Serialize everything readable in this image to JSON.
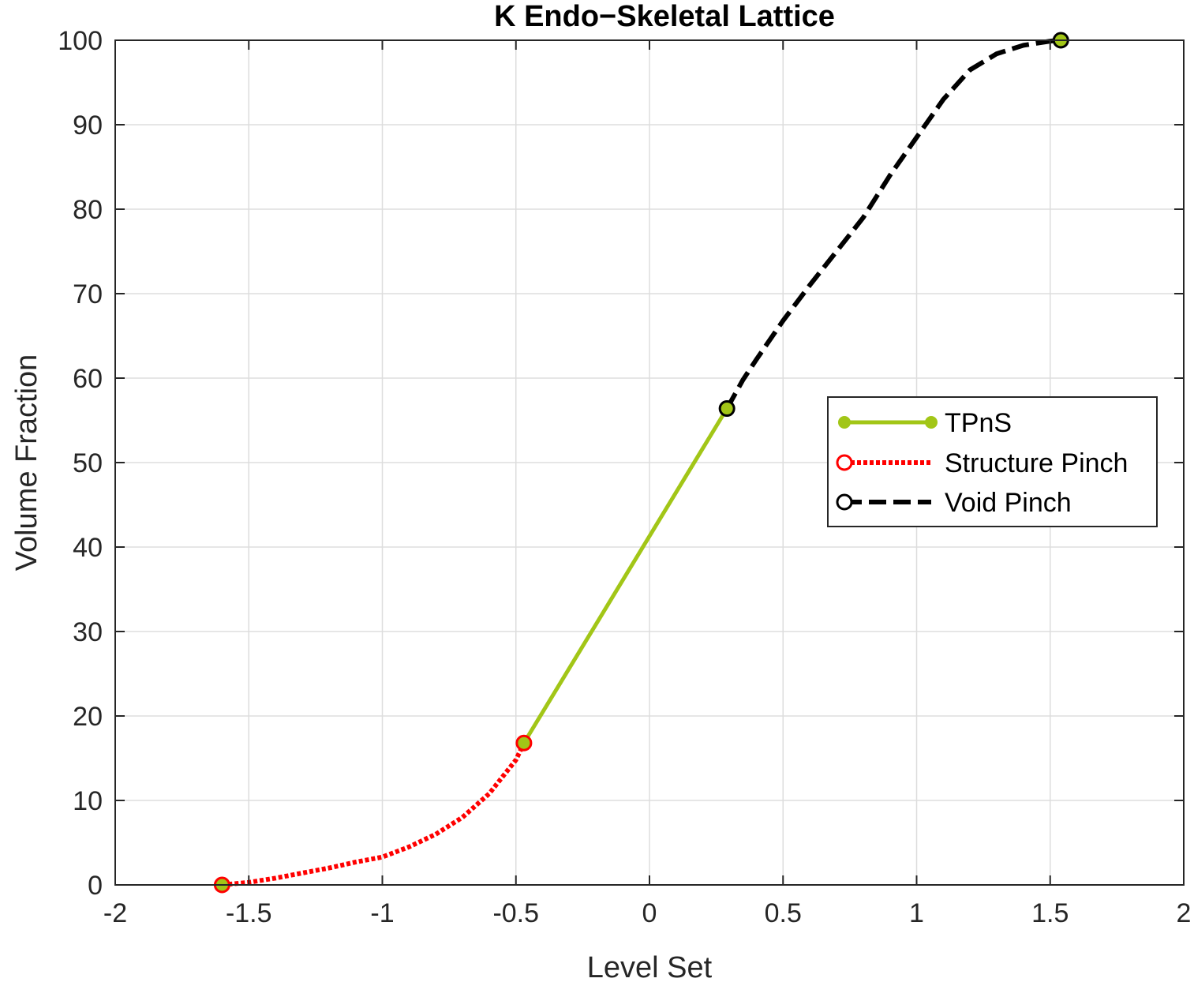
{
  "colors": {
    "tpns": "#a2c617",
    "structure": "#ff0000",
    "void": "#000000",
    "grid": "#dddddd",
    "axis": "#262626"
  },
  "chart_data": {
    "type": "line",
    "title": "K Endo−Skeletal Lattice",
    "xlabel": "Level Set",
    "ylabel": "Volume Fraction",
    "xlim": [
      -2,
      2
    ],
    "ylim": [
      0,
      100
    ],
    "xticks": [
      -2,
      -1.5,
      -1,
      -0.5,
      0,
      0.5,
      1,
      1.5,
      2
    ],
    "xtick_labels": [
      "-2",
      "-1.5",
      "-1",
      "-0.5",
      "0",
      "0.5",
      "1",
      "1.5",
      "2"
    ],
    "yticks": [
      0,
      10,
      20,
      30,
      40,
      50,
      60,
      70,
      80,
      90,
      100
    ],
    "ytick_labels": [
      "0",
      "10",
      "20",
      "30",
      "40",
      "50",
      "60",
      "70",
      "80",
      "90",
      "100"
    ],
    "grid": true,
    "legend_position": "right",
    "series": [
      {
        "name": "TPnS",
        "style": "solid",
        "marker": "filled-circle",
        "x": [
          -0.47,
          0.29
        ],
        "y": [
          16.8,
          56.4
        ]
      },
      {
        "name": "Structure Pinch",
        "style": "dotted",
        "marker": "open-circle",
        "x": [
          -1.6,
          -1.5,
          -1.4,
          -1.3,
          -1.2,
          -1.1,
          -1.0,
          -0.9,
          -0.8,
          -0.7,
          -0.6,
          -0.5,
          -0.47
        ],
        "y": [
          0,
          0.3,
          0.8,
          1.4,
          2.0,
          2.7,
          3.3,
          4.5,
          6.0,
          8.0,
          10.8,
          14.8,
          16.8
        ]
      },
      {
        "name": "Void Pinch",
        "style": "dashed",
        "marker": "open-circle",
        "x": [
          0.29,
          0.35,
          0.4,
          0.5,
          0.6,
          0.7,
          0.8,
          0.9,
          1.0,
          1.1,
          1.2,
          1.3,
          1.4,
          1.5,
          1.54
        ],
        "y": [
          56.4,
          59.8,
          62.2,
          66.8,
          71.0,
          75.0,
          79.0,
          84.0,
          88.5,
          93.0,
          96.5,
          98.4,
          99.4,
          99.9,
          100
        ]
      }
    ]
  }
}
